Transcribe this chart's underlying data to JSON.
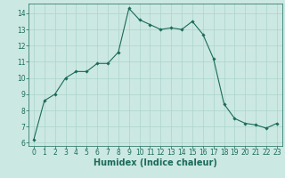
{
  "x": [
    0,
    1,
    2,
    3,
    4,
    5,
    6,
    7,
    8,
    9,
    10,
    11,
    12,
    13,
    14,
    15,
    16,
    17,
    18,
    19,
    20,
    21,
    22,
    23
  ],
  "y": [
    6.2,
    8.6,
    9.0,
    10.0,
    10.4,
    10.4,
    10.9,
    10.9,
    11.6,
    14.3,
    13.6,
    13.3,
    13.0,
    13.1,
    13.0,
    13.5,
    12.7,
    11.2,
    8.4,
    7.5,
    7.2,
    7.1,
    6.9,
    7.2
  ],
  "line_color": "#1a6b5a",
  "marker": "D",
  "marker_size": 1.8,
  "line_width": 0.8,
  "xlabel": "Humidex (Indice chaleur)",
  "xlim": [
    -0.5,
    23.5
  ],
  "ylim": [
    5.8,
    14.6
  ],
  "yticks": [
    6,
    7,
    8,
    9,
    10,
    11,
    12,
    13,
    14
  ],
  "xticks": [
    0,
    1,
    2,
    3,
    4,
    5,
    6,
    7,
    8,
    9,
    10,
    11,
    12,
    13,
    14,
    15,
    16,
    17,
    18,
    19,
    20,
    21,
    22,
    23
  ],
  "bg_color": "#cce8e2",
  "grid_color": "#aad4cc",
  "tick_label_color": "#1a6b5a",
  "xlabel_color": "#1a6b5a",
  "tick_fontsize": 5.5,
  "xlabel_fontsize": 7.0
}
